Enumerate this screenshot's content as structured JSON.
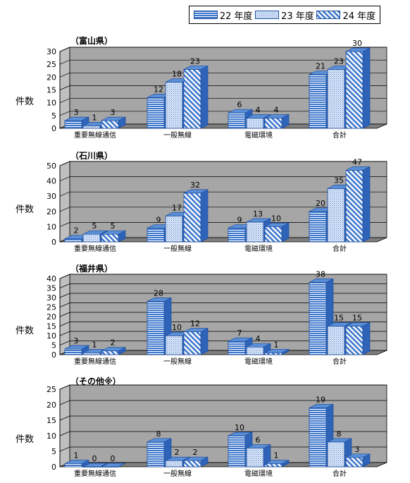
{
  "legend": [
    {
      "label": "22 年度",
      "pattern": "hstripe"
    },
    {
      "label": "23 年度",
      "pattern": "dots"
    },
    {
      "label": "24 年度",
      "pattern": "diag"
    }
  ],
  "colors": {
    "bar_fill": "#5b8fd6",
    "bar_stroke": "#1f4fa0",
    "plot_bg": "#a6a6a6",
    "floor": "#7f7f7f"
  },
  "chart_data": [
    {
      "type": "bar",
      "title": "（富山県）",
      "ylabel": "件数",
      "categories": [
        "重要無線通信",
        "一般無線",
        "電磁環境",
        "合計"
      ],
      "ylim": [
        0,
        30
      ],
      "yticks": [
        0,
        5,
        10,
        15,
        20,
        25,
        30
      ],
      "series": [
        {
          "name": "22 年度",
          "values": [
            3,
            12,
            6,
            21
          ]
        },
        {
          "name": "23 年度",
          "values": [
            1,
            18,
            4,
            23
          ]
        },
        {
          "name": "24 年度",
          "values": [
            3,
            23,
            4,
            30
          ]
        }
      ]
    },
    {
      "type": "bar",
      "title": "（石川県）",
      "ylabel": "件数",
      "categories": [
        "重要無線通信",
        "一般無線",
        "電磁環境",
        "合計"
      ],
      "ylim": [
        0,
        50
      ],
      "yticks": [
        0,
        10,
        20,
        30,
        40,
        50
      ],
      "series": [
        {
          "name": "22 年度",
          "values": [
            2,
            9,
            9,
            20
          ]
        },
        {
          "name": "23 年度",
          "values": [
            5,
            17,
            13,
            35
          ]
        },
        {
          "name": "24 年度",
          "values": [
            5,
            32,
            10,
            47
          ]
        }
      ]
    },
    {
      "type": "bar",
      "title": "（福井県）",
      "ylabel": "件数",
      "categories": [
        "重要無線通信",
        "一般無線",
        "電磁環境",
        "合計"
      ],
      "ylim": [
        0,
        40
      ],
      "yticks": [
        0,
        5,
        10,
        15,
        20,
        25,
        30,
        35,
        40
      ],
      "series": [
        {
          "name": "22 年度",
          "values": [
            3,
            28,
            7,
            38
          ]
        },
        {
          "name": "23 年度",
          "values": [
            1,
            10,
            4,
            15
          ]
        },
        {
          "name": "24 年度",
          "values": [
            2,
            12,
            1,
            15
          ]
        }
      ]
    },
    {
      "type": "bar",
      "title": "（その他※）",
      "ylabel": "件数",
      "categories": [
        "重要無線通信",
        "一般無線",
        "電磁環境",
        "合計"
      ],
      "ylim": [
        0,
        25
      ],
      "yticks": [
        0,
        5,
        10,
        15,
        20,
        25
      ],
      "series": [
        {
          "name": "22 年度",
          "values": [
            1,
            8,
            10,
            19
          ]
        },
        {
          "name": "23 年度",
          "values": [
            0,
            2,
            6,
            8
          ]
        },
        {
          "name": "24 年度",
          "values": [
            0,
            2,
            1,
            3
          ]
        }
      ]
    }
  ]
}
